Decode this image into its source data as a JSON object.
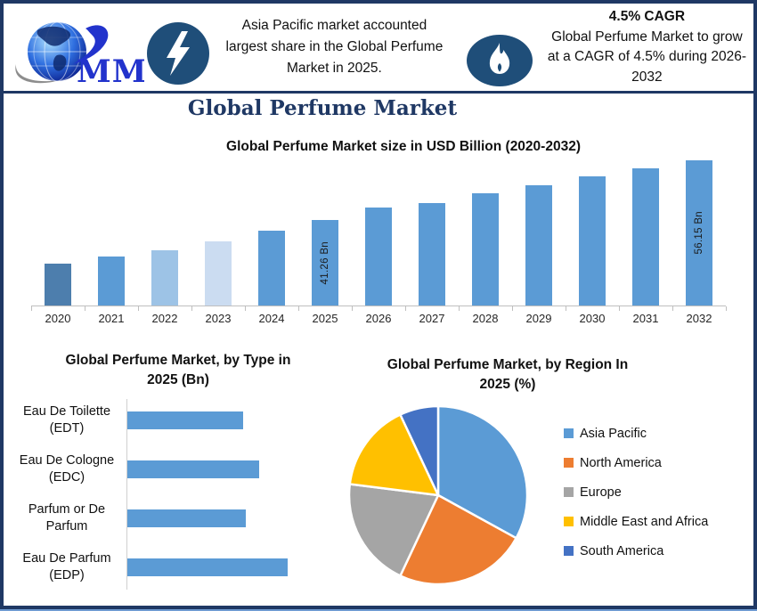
{
  "brand": {
    "logo_text": "MMR"
  },
  "header": {
    "left_note_lines": [
      "Asia Pacific market accounted",
      "largest share in the Global Perfume",
      "Market in 2025."
    ],
    "cagr_heading": "4.5% CAGR",
    "cagr_note_lines": [
      "Global Perfume Market to grow",
      "at a CAGR of 4.5% during 2026-",
      "2032"
    ]
  },
  "page_title": "Global Perfume Market",
  "colors": {
    "border_navy": "#1f3864",
    "icon_circle_blue": "#1f4e79",
    "bar_blue": "#5b9bd5",
    "axis_gray": "#bfbfbf"
  },
  "chart_data": [
    {
      "id": "market_size",
      "type": "bar",
      "title": "Global Perfume Market size in USD Billion (2020-2032)",
      "unit": "USD Billion",
      "categories": [
        "2020",
        "2021",
        "2022",
        "2023",
        "2024",
        "2025",
        "2026",
        "2027",
        "2028",
        "2029",
        "2030",
        "2031",
        "2032"
      ],
      "values": [
        30.5,
        32.2,
        33.8,
        36.1,
        38.7,
        41.26,
        44.4,
        45.6,
        48.0,
        50.0,
        52.2,
        54.2,
        56.15
      ],
      "bar_labels": [
        "",
        "",
        "",
        "",
        "",
        "41.26 Bn",
        "",
        "",
        "",
        "",
        "",
        "",
        "56.15 Bn"
      ],
      "bar_colors": [
        "#4d7ead",
        "#5b9bd5",
        "#9dc3e6",
        "#cbdcf1",
        "#5b9bd5",
        "#5b9bd5",
        "#5b9bd5",
        "#5b9bd5",
        "#5b9bd5",
        "#5b9bd5",
        "#5b9bd5",
        "#5b9bd5",
        "#5b9bd5"
      ],
      "ylim": [
        20,
        60
      ],
      "grid": false,
      "legend": "none"
    },
    {
      "id": "by_type",
      "type": "bar",
      "orientation": "horizontal",
      "title": "Global Perfume Market, by Type in 2025 (Bn)",
      "title_lines": [
        "Global Perfume Market, by Type in",
        "2025 (Bn)"
      ],
      "categories": [
        "Eau De Toilette (EDT)",
        "Eau De Cologne (EDC)",
        "Parfum or De Parfum",
        "Eau De Parfum (EDP)"
      ],
      "relative_values": [
        0.72,
        0.82,
        0.74,
        1.0
      ],
      "bar_color": "#5b9bd5",
      "grid": false,
      "legend": "none"
    },
    {
      "id": "by_region",
      "type": "pie",
      "title": "Global Perfume Market, by Region In 2025 (%)",
      "title_lines": [
        "Global Perfume Market, by Region In",
        "2025 (%)"
      ],
      "start_angle": "top",
      "direction": "clockwise",
      "legend_position": "right",
      "slices": [
        {
          "label": "Asia Pacific",
          "value": 33,
          "color": "#5b9bd5"
        },
        {
          "label": "North America",
          "value": 24,
          "color": "#ed7d31"
        },
        {
          "label": "Europe",
          "value": 20,
          "color": "#a5a5a5"
        },
        {
          "label": "Middle East and Africa",
          "value": 16,
          "color": "#ffc000"
        },
        {
          "label": "South America",
          "value": 7,
          "color": "#4472c4"
        }
      ]
    }
  ]
}
